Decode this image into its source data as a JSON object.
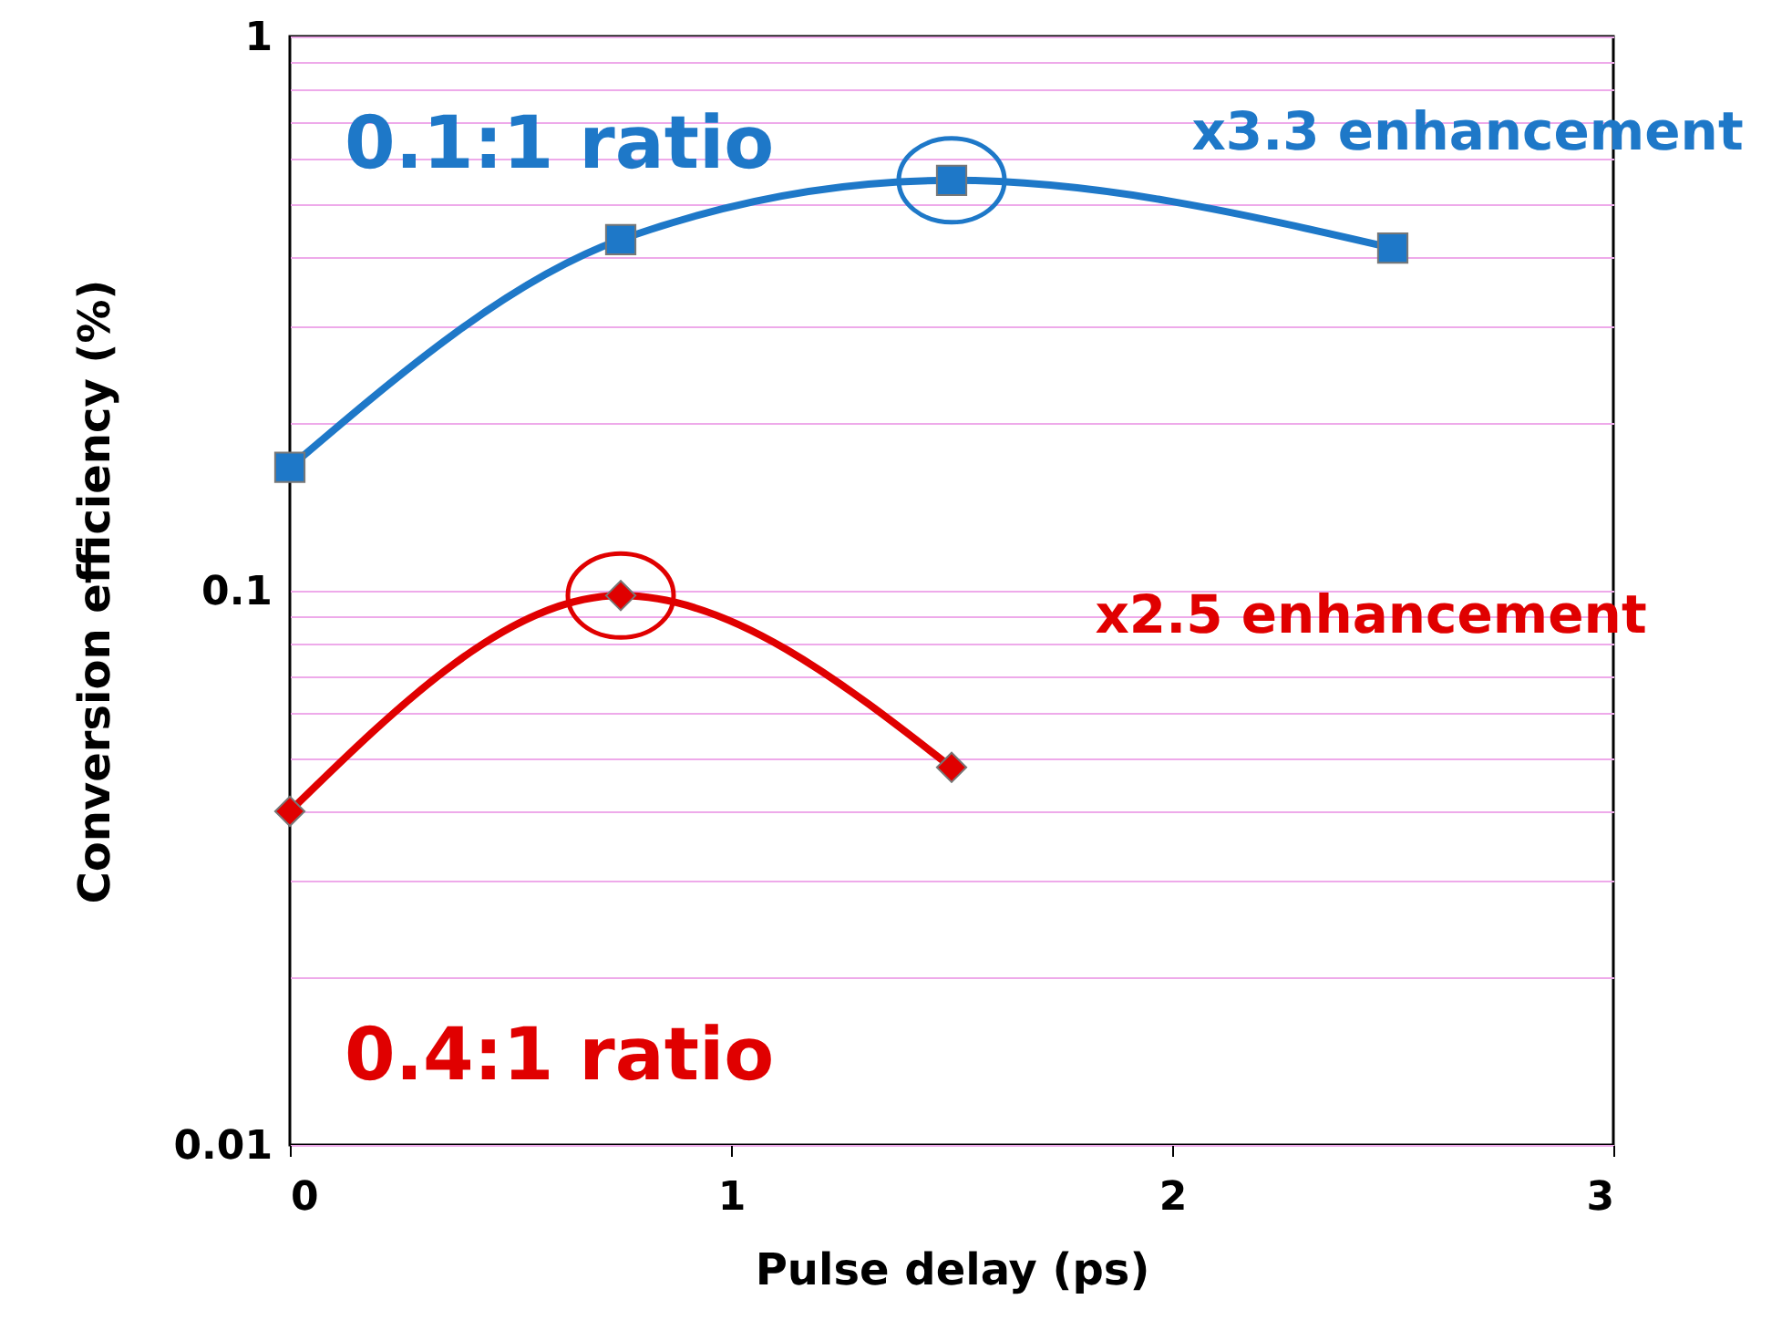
{
  "chart_data": {
    "type": "line",
    "xlabel": "Pulse delay (ps)",
    "ylabel": "Conversion efficiency (%)",
    "x": [
      0,
      0.75,
      1.5,
      2.5
    ],
    "series": [
      {
        "name": "0.1:1 ratio",
        "color": "#1e78c8",
        "marker": "square",
        "values": [
          0.167,
          0.43,
          0.55,
          0.415
        ]
      },
      {
        "name": "0.4:1 ratio",
        "color": "#e00000",
        "marker": "diamond",
        "values": [
          0.04,
          0.098,
          0.048,
          null
        ]
      }
    ],
    "annotations": [
      "x3.3 enhancement",
      "x2.5 enhancement"
    ],
    "log": "y",
    "xlim": [
      0,
      3
    ],
    "xticks": [
      0,
      1,
      2,
      3
    ],
    "ylim": [
      0.01,
      1
    ],
    "yticks": [
      0.01,
      {
        "value": 0.02,
        "label": null
      },
      {
        "value": 0.03,
        "label": null
      },
      {
        "value": 0.04,
        "label": null
      },
      {
        "value": 0.05,
        "label": null
      },
      {
        "value": 0.06,
        "label": null
      },
      {
        "value": 0.07,
        "label": null
      },
      {
        "value": 0.08,
        "label": null
      },
      {
        "value": 0.09,
        "label": null
      },
      0.1,
      {
        "value": 0.2,
        "label": null
      },
      {
        "value": 0.3,
        "label": null
      },
      {
        "value": 0.4,
        "label": null
      },
      {
        "value": 0.5,
        "label": null
      },
      {
        "value": 0.6,
        "label": null
      },
      {
        "value": 0.7,
        "label": null
      },
      {
        "value": 0.8,
        "label": null
      },
      {
        "value": 0.9,
        "label": null
      },
      1
    ],
    "grid": "y",
    "legend": "left"
  }
}
